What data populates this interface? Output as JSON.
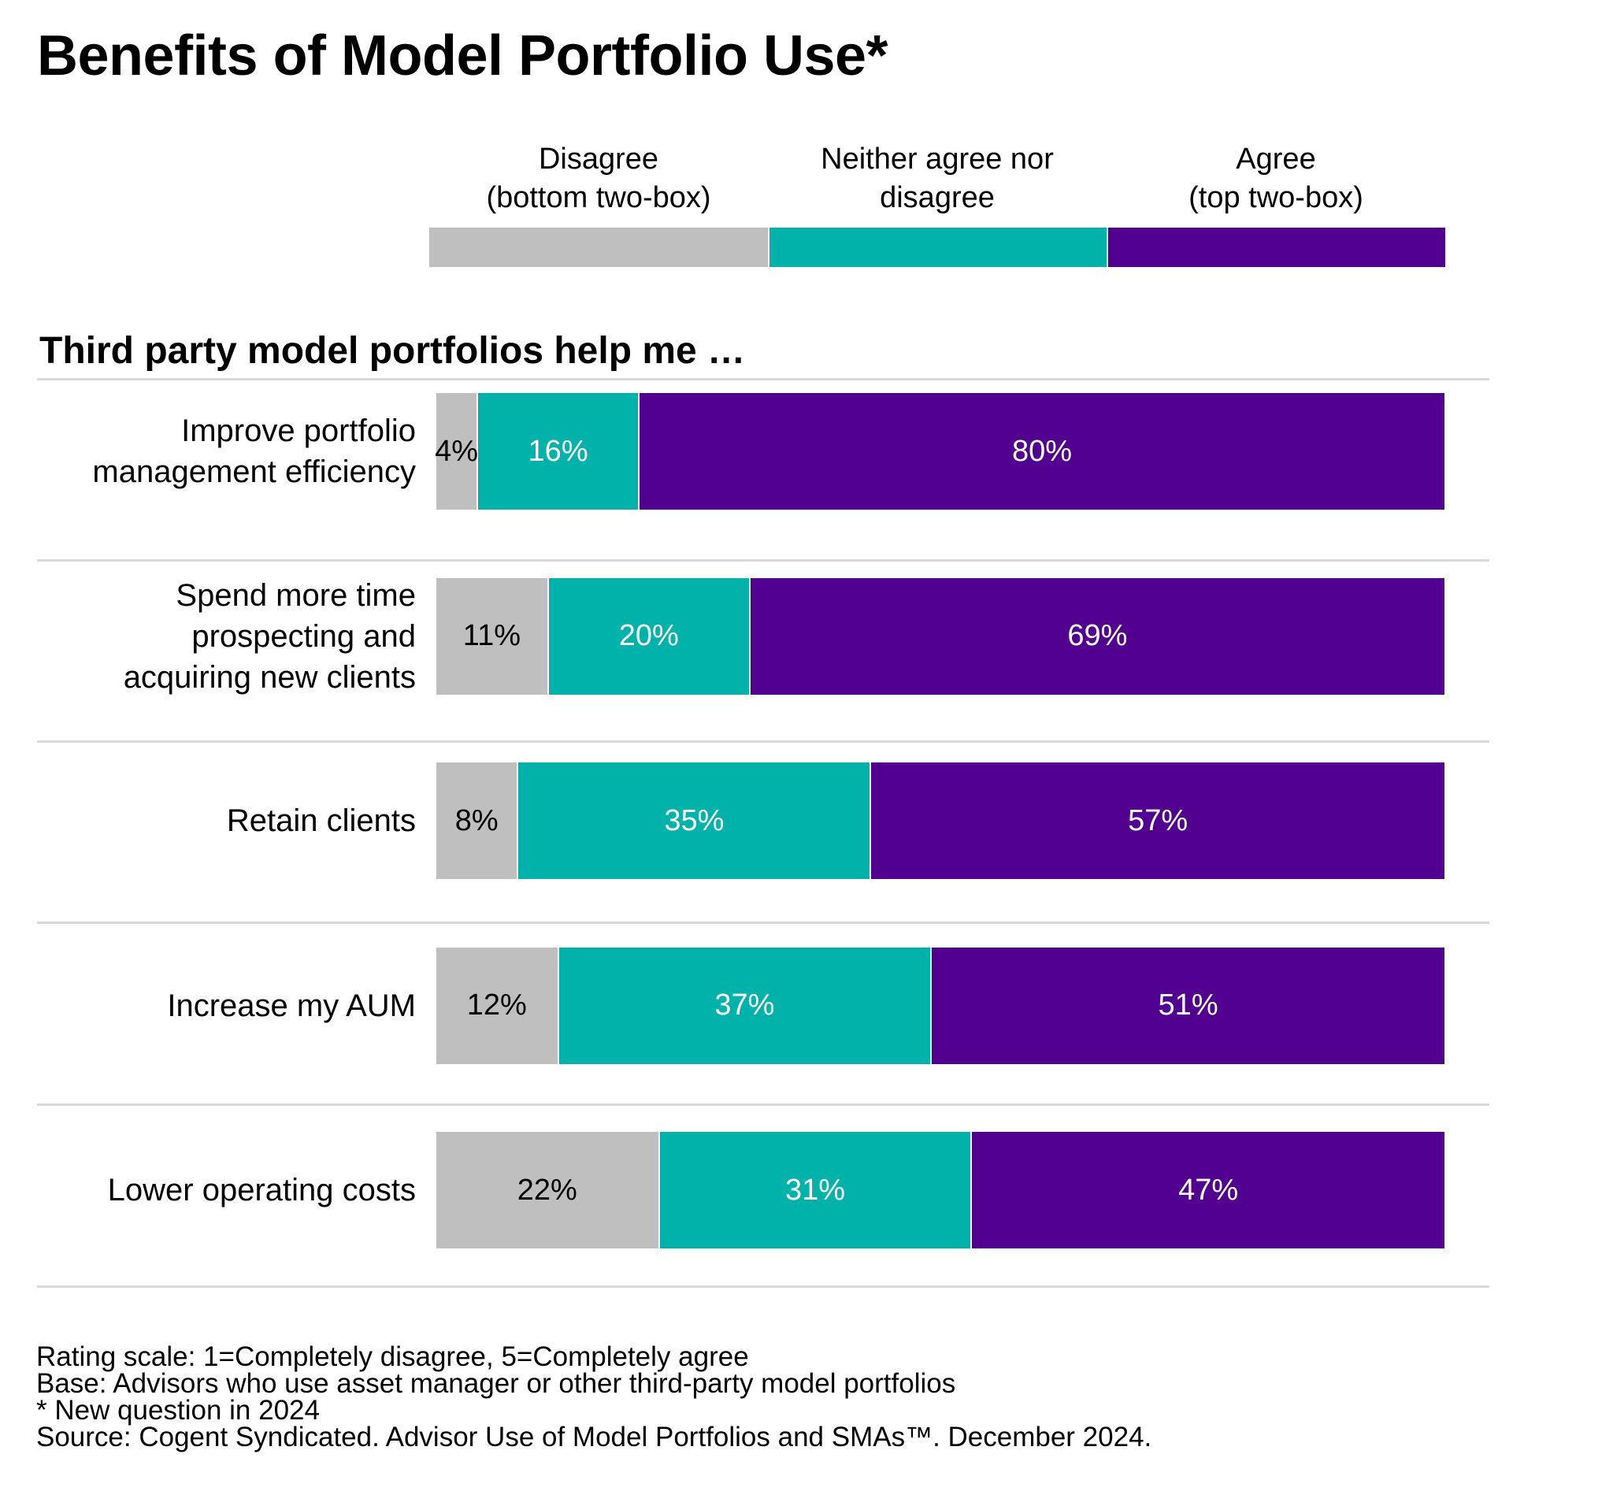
{
  "chart_data": {
    "type": "bar",
    "orientation": "horizontal-stacked-100",
    "title": "Benefits of Model Portfolio Use*",
    "subtitle": "Third party model portfolios help me …",
    "legend_position": "top",
    "categories": [
      "Improve portfolio management efficiency",
      "Spend more time prospecting and acquiring new clients",
      "Retain clients",
      "Increase my AUM",
      "Lower operating costs"
    ],
    "category_lines": [
      [
        "Improve portfolio",
        "management efficiency"
      ],
      [
        "Spend more time",
        "prospecting and",
        "acquiring new clients"
      ],
      [
        "Retain clients"
      ],
      [
        "Increase my AUM"
      ],
      [
        "Lower operating costs"
      ]
    ],
    "series": [
      {
        "name": "Disagree (bottom two-box)",
        "legend_lines": [
          "Disagree",
          "(bottom two-box)"
        ],
        "color": "#bfbfbf",
        "label_color": "#000000",
        "values": [
          4,
          11,
          8,
          12,
          22
        ]
      },
      {
        "name": "Neither agree nor disagree",
        "legend_lines": [
          "Neither agree nor",
          "disagree"
        ],
        "color": "#00b2a9",
        "label_color": "#ffffff",
        "values": [
          16,
          20,
          35,
          37,
          31
        ]
      },
      {
        "name": "Agree (top two-box)",
        "legend_lines": [
          "Agree",
          "(top two-box)"
        ],
        "color": "#51008f",
        "label_color": "#ffffff",
        "values": [
          80,
          69,
          57,
          51,
          47
        ]
      }
    ],
    "xlim": [
      0,
      100
    ],
    "unit": "%"
  },
  "footer": [
    "Rating scale: 1=Completely disagree, 5=Completely agree",
    "Base: Advisors who use asset manager or other third-party model portfolios",
    "* New question in 2024",
    "Source: Cogent Syndicated. Advisor Use of Model Portfolios and SMAs™. December 2024."
  ]
}
